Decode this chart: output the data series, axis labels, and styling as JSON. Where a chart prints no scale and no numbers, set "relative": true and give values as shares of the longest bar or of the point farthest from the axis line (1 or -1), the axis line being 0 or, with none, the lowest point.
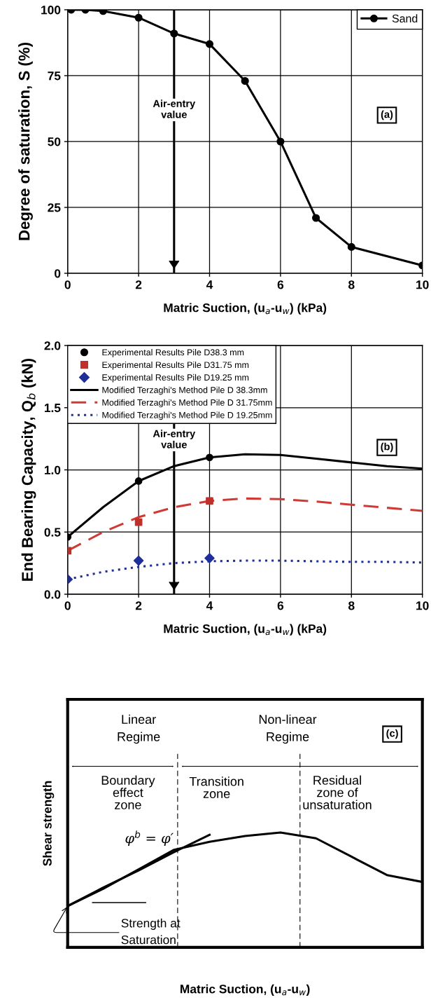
{
  "chart_data": [
    {
      "type": "line",
      "xlabel": "Matric Suction, (u$_{a}$-u$_{w}$) (kPa)",
      "ylabel": "Degree of saturation, S (%)",
      "x": [
        0.1,
        0.5,
        1,
        2,
        3,
        4,
        5,
        6,
        7,
        8,
        10
      ],
      "series": [
        {
          "name": "Sand",
          "color": "#000000",
          "values": [
            100,
            100,
            99.5,
            97,
            91,
            87,
            73,
            50,
            21,
            10,
            3
          ]
        }
      ],
      "marker": "circle",
      "line_style": "solid",
      "xlim": [
        0,
        10
      ],
      "xticks": [
        0,
        2,
        4,
        6,
        8,
        10
      ],
      "ylim": [
        0,
        100
      ],
      "yticks": [
        0,
        25,
        50,
        75,
        100
      ],
      "grid": true,
      "legend": "top right",
      "ref_lines": [
        {
          "axis": "x",
          "value": 3,
          "label": "Air-entry\nvalue",
          "color": "#000000"
        }
      ],
      "annotations": [
        "(a)"
      ]
    },
    {
      "type": "line",
      "xlabel": "Matric Suction, (u$_{a}$-u$_{w}$) (kPa)",
      "ylabel": "End Bearing Capacity, Q$_{b}$ (kN)",
      "x": [
        0,
        1,
        2,
        3,
        4,
        5,
        6,
        7,
        8,
        9,
        10
      ],
      "series": [
        {
          "name": "Experimental Results Pile D38.3 mm",
          "type": "scatter",
          "marker": "circle",
          "color": "#000000",
          "x": [
            0,
            2,
            4
          ],
          "values": [
            0.46,
            0.91,
            1.1
          ]
        },
        {
          "name": "Experimental Results Pile D31.75 mm",
          "type": "scatter",
          "marker": "square",
          "color": "#c0302a",
          "x": [
            0,
            2,
            4
          ],
          "values": [
            0.35,
            0.58,
            0.75
          ]
        },
        {
          "name": "Experimental Results Pile D19.25 mm",
          "type": "scatter",
          "marker": "diamond",
          "color": "#1f2f9a",
          "x": [
            0,
            2,
            4
          ],
          "values": [
            0.12,
            0.27,
            0.29
          ]
        },
        {
          "name": "Modified Terzaghi's Method Pile D 38.3mm",
          "type": "line",
          "line_style": "solid",
          "color": "#000000",
          "values": [
            0.46,
            0.7,
            0.91,
            1.03,
            1.1,
            1.125,
            1.12,
            1.09,
            1.06,
            1.03,
            1.01
          ]
        },
        {
          "name": "Modified Terzaghi's Method Pile D 31.75mm",
          "type": "line",
          "line_style": "dashed",
          "color": "#d03a35",
          "values": [
            0.35,
            0.5,
            0.62,
            0.7,
            0.75,
            0.77,
            0.765,
            0.745,
            0.72,
            0.695,
            0.67
          ]
        },
        {
          "name": "Modified Terzaghi's Method Pile D 19.25mm",
          "type": "line",
          "line_style": "dotted",
          "color": "#1f2f9a",
          "values": [
            0.12,
            0.18,
            0.22,
            0.25,
            0.265,
            0.27,
            0.27,
            0.265,
            0.26,
            0.26,
            0.255
          ]
        }
      ],
      "xlim": [
        0,
        10
      ],
      "xticks": [
        0,
        2,
        4,
        6,
        8,
        10
      ],
      "ylim": [
        0,
        2
      ],
      "yticks": [
        {
          "value": 0,
          "label": "0.0"
        },
        {
          "value": 0.5,
          "label": "0.5"
        },
        {
          "value": 1,
          "label": "1.0"
        },
        {
          "value": 1.5,
          "label": "1.5"
        },
        {
          "value": 2,
          "label": "2.0"
        }
      ],
      "grid": true,
      "legend": "top left",
      "ref_lines": [
        {
          "axis": "x",
          "value": 3,
          "label": "Air-entry\nvalue",
          "color": "#000000"
        }
      ],
      "annotations": [
        "(b)"
      ]
    },
    {
      "type": "line",
      "relative": true,
      "xlabel": "Matric Suction, (u$_{a}$-u$_{w}$)",
      "ylabel": "Shear strength",
      "categories": [
        null,
        null,
        null,
        null,
        null,
        null,
        null,
        null,
        null,
        null,
        null
      ],
      "series": [
        {
          "color": "#000000",
          "values": [
            0.36,
            0.51,
            0.68,
            0.85,
            0.92,
            0.97,
            1.0,
            0.95,
            0.79,
            0.63,
            0.57
          ]
        },
        {
          "color": "#000000",
          "values": [
            0.36,
            0.52,
            0.67,
            0.83,
            0.98,
            null,
            null,
            null,
            null,
            null,
            null
          ]
        }
      ],
      "tick_labels": false,
      "annotations": [
        "(c)",
        "Linear\nRegime",
        "Non-linear\nRegime",
        "Boundary\neffect\nzone",
        "Transition\nzone",
        "Residual\nzone of\nunsaturation",
        "φ$^{b}$ = φ′",
        "Strength at\nSaturation"
      ]
    }
  ]
}
